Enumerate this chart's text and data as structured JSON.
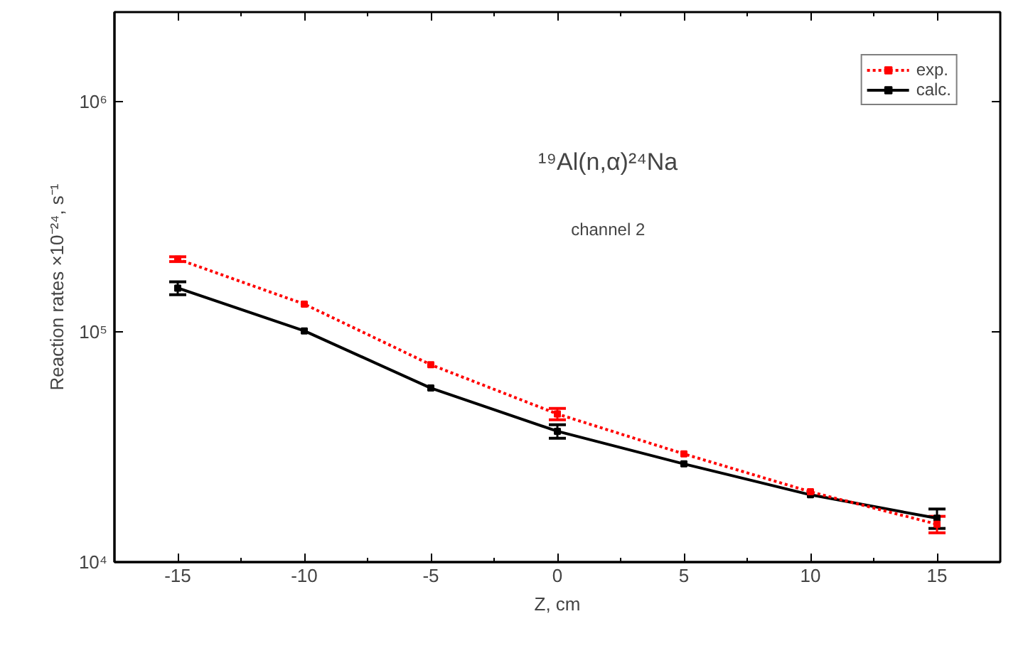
{
  "chart_data": {
    "type": "line",
    "xlabel": "Z, cm",
    "ylabel": "Reaction rates ×10⁻²⁴, s⁻¹",
    "annotations": [
      "¹⁹Al(n,α)²⁴Na",
      "channel 2"
    ],
    "x": [
      -15,
      -10,
      -5,
      0,
      5,
      10,
      15
    ],
    "series": [
      {
        "name": "exp.",
        "color": "#ff0000",
        "line_style": "dotted",
        "values": [
          207000,
          132000,
          72000,
          44000,
          29500,
          20200,
          14600
        ],
        "errors": [
          5000,
          null,
          null,
          2500,
          null,
          null,
          1200
        ]
      },
      {
        "name": "calc.",
        "color": "#000000",
        "line_style": "solid",
        "values": [
          155000,
          101000,
          57000,
          37000,
          26700,
          19600,
          15500
        ],
        "errors": [
          10000,
          null,
          null,
          2500,
          null,
          null,
          1500
        ]
      }
    ],
    "marker": "square",
    "log": "y",
    "xlim": [
      -17.5,
      17.5
    ],
    "xticks": [
      {
        "value": -17.5,
        "label": null
      },
      -15,
      {
        "value": -12.5,
        "label": null
      },
      -10,
      {
        "value": -7.5,
        "label": null
      },
      -5,
      {
        "value": -2.5,
        "label": null
      },
      0,
      {
        "value": 2.5,
        "label": null
      },
      5,
      {
        "value": 7.5,
        "label": null
      },
      10,
      {
        "value": 12.5,
        "label": null
      },
      15,
      {
        "value": 17.5,
        "label": null
      }
    ],
    "ylim": [
      10000,
      2450000
    ],
    "yticks": [
      {
        "value": 10000,
        "label": "10⁴"
      },
      {
        "value": 100000,
        "label": "10⁵"
      },
      {
        "value": 1000000,
        "label": "10⁶"
      }
    ],
    "grid": false,
    "legend": "top right"
  }
}
